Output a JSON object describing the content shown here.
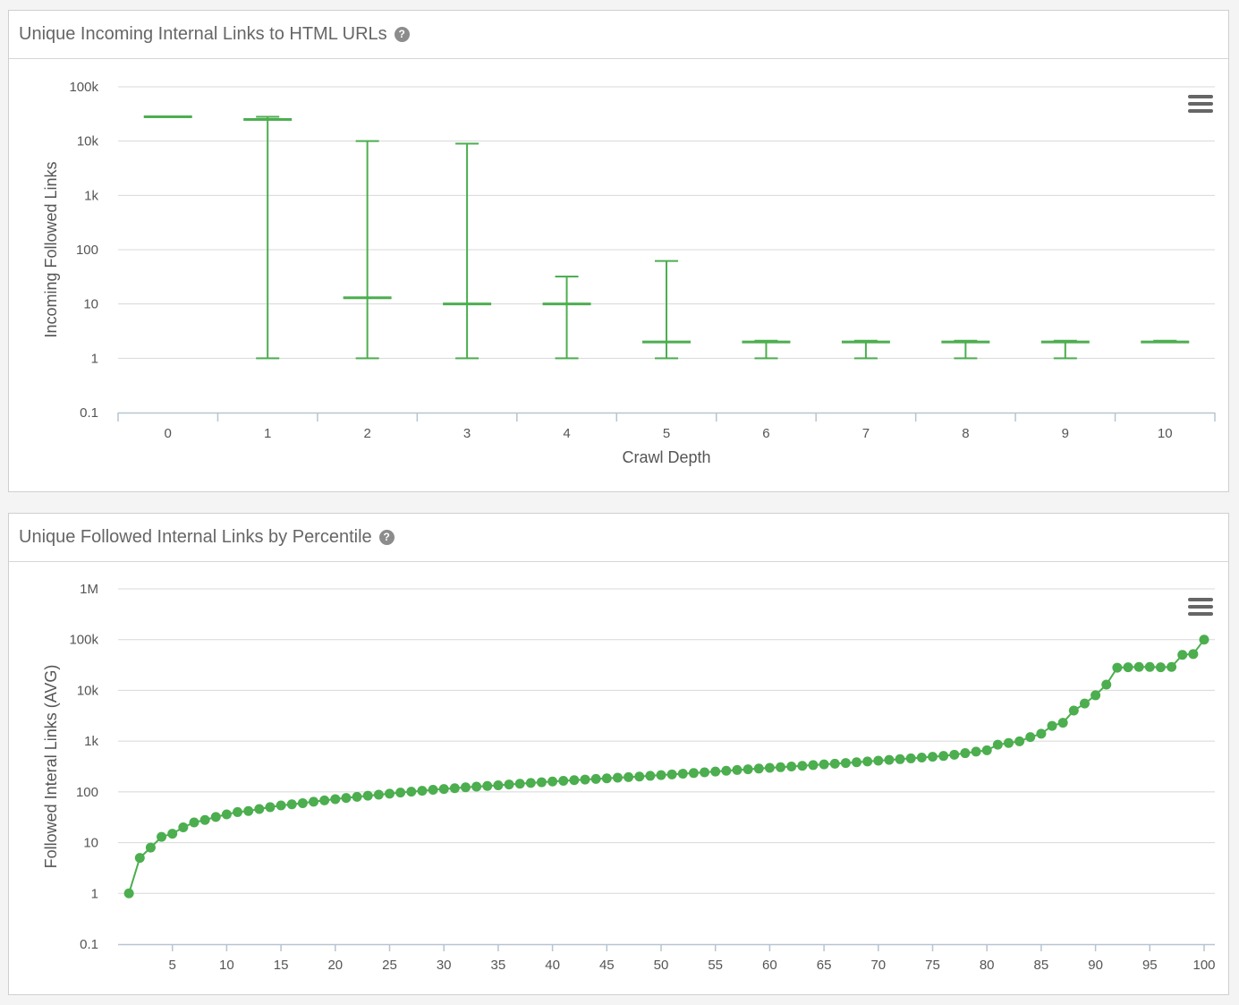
{
  "charts": {
    "depth": {
      "header_title": "Unique Incoming Internal Links to HTML URLs",
      "help_icon": "?",
      "menu_icon": "hamburger-menu-icon"
    },
    "percentile": {
      "header_title": "Unique Followed Internal Links by Percentile",
      "help_icon": "?",
      "menu_icon": "hamburger-menu-icon"
    }
  },
  "colors": {
    "series": "#4cae4f",
    "grid": "#d8d8d8",
    "axis": "#b7c4d0"
  },
  "chart_data": [
    {
      "type": "boxplot",
      "title": "",
      "xlabel": "Crawl Depth",
      "ylabel": "Incoming Followed Links",
      "y_scale": "log",
      "ylim": [
        0.1,
        100000
      ],
      "y_ticks": [
        "100k",
        "10k",
        "1k",
        "100",
        "10",
        "1",
        "0.1"
      ],
      "categories": [
        "0",
        "1",
        "2",
        "3",
        "4",
        "5",
        "6",
        "7",
        "8",
        "9",
        "10"
      ],
      "series": [
        {
          "boxes": [
            {
              "low": 28000,
              "median": 28000,
              "high": 28000
            },
            {
              "low": 1,
              "median": 25000,
              "high": 28000
            },
            {
              "low": 1,
              "median": 13,
              "high": 10000
            },
            {
              "low": 1,
              "median": 10,
              "high": 9000
            },
            {
              "low": 1,
              "median": 10,
              "high": 32
            },
            {
              "low": 1,
              "median": 2,
              "high": 62
            },
            {
              "low": 1,
              "median": 2,
              "high": 2.1
            },
            {
              "low": 1,
              "median": 2,
              "high": 2.1
            },
            {
              "low": 1,
              "median": 2,
              "high": 2.1
            },
            {
              "low": 1,
              "median": 2,
              "high": 2.1
            },
            {
              "low": 2,
              "median": 2,
              "high": 2.1
            }
          ]
        }
      ],
      "grid": true,
      "legend": "none"
    },
    {
      "type": "line",
      "title": "",
      "xlabel": "",
      "ylabel": "Followed Interal Links (AVG)",
      "y_scale": "log",
      "ylim": [
        0.1,
        1000000
      ],
      "y_ticks": [
        "1M",
        "100k",
        "10k",
        "1k",
        "100",
        "10",
        "1",
        "0.1"
      ],
      "xlim": [
        0,
        100
      ],
      "x_ticks": [
        "5",
        "10",
        "15",
        "20",
        "25",
        "30",
        "35",
        "40",
        "45",
        "50",
        "55",
        "60",
        "65",
        "70",
        "75",
        "80",
        "85",
        "90",
        "95",
        "100"
      ],
      "series": [
        {
          "values": [
            1,
            5,
            8,
            13,
            15,
            20,
            25,
            28,
            32,
            36,
            40,
            42,
            46,
            50,
            54,
            57,
            60,
            64,
            68,
            72,
            76,
            80,
            84,
            88,
            92,
            97,
            101,
            105,
            110,
            114,
            118,
            123,
            127,
            131,
            135,
            140,
            145,
            150,
            155,
            160,
            165,
            170,
            175,
            180,
            185,
            190,
            195,
            200,
            207,
            214,
            221,
            228,
            235,
            243,
            252,
            261,
            270,
            279,
            288,
            297,
            306,
            316,
            326,
            337,
            348,
            359,
            371,
            384,
            397,
            411,
            426,
            441,
            457,
            474,
            492,
            511,
            540,
            580,
            620,
            660,
            850,
            920,
            990,
            1200,
            1400,
            2000,
            2300,
            4000,
            5500,
            8000,
            13000,
            28000,
            28500,
            29000,
            29000,
            28500,
            29000,
            50000,
            52000,
            100000
          ]
        }
      ],
      "grid": true,
      "legend": "none"
    }
  ]
}
